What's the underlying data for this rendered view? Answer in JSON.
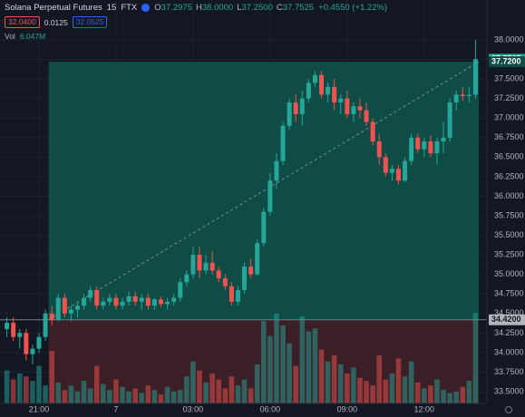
{
  "chart_data": {
    "type": "candlestick",
    "title": "Solana Perpetual Futures",
    "interval": "15",
    "exchange": "FTX",
    "ohlc_legend": [
      {
        "label": "O",
        "value": "37.2975"
      },
      {
        "label": "H",
        "value": "38.0000"
      },
      {
        "label": "L",
        "value": "37.2500"
      },
      {
        "label": "C",
        "value": "37.7525"
      }
    ],
    "change": "+0.4550 (+1.22%)",
    "trade_panel": {
      "sell": "32.0400",
      "spread": "0.0125",
      "buy": "32.0525"
    },
    "categories": [
      null,
      null,
      null,
      null,
      null,
      "21:00",
      null,
      null,
      null,
      null,
      null,
      null,
      null,
      null,
      null,
      null,
      null,
      "7",
      null,
      null,
      null,
      null,
      null,
      null,
      null,
      null,
      null,
      null,
      null,
      "03:00",
      null,
      null,
      null,
      null,
      null,
      null,
      null,
      null,
      null,
      null,
      null,
      "06:00",
      null,
      null,
      null,
      null,
      null,
      null,
      null,
      null,
      null,
      null,
      null,
      "09:00",
      null,
      null,
      null,
      null,
      null,
      null,
      null,
      null,
      null,
      null,
      null,
      "12:00",
      null,
      null,
      null,
      null,
      null,
      null,
      null,
      null
    ],
    "open": [
      34.3,
      34.38,
      34.2,
      34.25,
      33.98,
      34.05,
      34.2,
      34.5,
      34.42,
      34.7,
      34.5,
      34.55,
      34.6,
      34.7,
      34.8,
      34.6,
      34.65,
      34.7,
      34.6,
      34.65,
      34.72,
      34.65,
      34.7,
      34.6,
      34.68,
      34.62,
      34.65,
      34.7,
      34.9,
      35.0,
      35.25,
      35.05,
      35.15,
      35.05,
      34.95,
      34.85,
      34.65,
      34.8,
      35.1,
      35.0,
      35.4,
      35.8,
      36.2,
      36.45,
      36.9,
      37.2,
      37.05,
      37.25,
      37.45,
      37.55,
      37.3,
      37.4,
      37.2,
      37.25,
      37.05,
      37.15,
      37.1,
      36.95,
      36.7,
      36.5,
      36.3,
      36.35,
      36.2,
      36.45,
      36.75,
      36.6,
      36.7,
      36.55,
      36.7,
      36.75,
      37.2,
      37.3,
      37.28,
      37.2975
    ],
    "high": [
      34.45,
      34.45,
      34.3,
      34.3,
      34.1,
      34.25,
      34.55,
      34.6,
      34.75,
      34.75,
      34.6,
      34.65,
      34.75,
      34.85,
      34.85,
      34.7,
      34.75,
      34.75,
      34.7,
      34.78,
      34.78,
      34.75,
      34.75,
      34.7,
      34.72,
      34.7,
      34.75,
      34.95,
      35.05,
      35.35,
      35.35,
      35.25,
      35.3,
      35.1,
      35.0,
      34.9,
      34.85,
      35.15,
      35.2,
      35.45,
      35.85,
      36.3,
      36.55,
      36.95,
      37.25,
      37.3,
      37.35,
      37.5,
      37.6,
      37.6,
      37.45,
      37.5,
      37.3,
      37.35,
      37.2,
      37.25,
      37.2,
      37.0,
      36.8,
      36.55,
      36.4,
      36.4,
      36.5,
      36.8,
      36.8,
      36.75,
      36.78,
      36.75,
      36.95,
      37.25,
      37.35,
      37.4,
      37.4,
      38.0
    ],
    "low": [
      34.2,
      34.15,
      34.05,
      33.9,
      33.85,
      34.0,
      34.15,
      34.35,
      34.4,
      34.45,
      34.4,
      34.45,
      34.55,
      34.65,
      34.55,
      34.55,
      34.6,
      34.55,
      34.55,
      34.6,
      34.6,
      34.55,
      34.55,
      34.55,
      34.58,
      34.55,
      34.6,
      34.65,
      34.85,
      34.95,
      34.95,
      35.0,
      35.0,
      34.9,
      34.8,
      34.6,
      34.6,
      34.75,
      34.95,
      34.98,
      35.35,
      35.75,
      36.1,
      36.4,
      36.85,
      36.95,
      36.9,
      37.2,
      37.4,
      37.25,
      37.2,
      37.1,
      37.05,
      37.0,
      36.95,
      37.0,
      36.9,
      36.65,
      36.4,
      36.25,
      36.2,
      36.15,
      36.18,
      36.4,
      36.55,
      36.5,
      36.5,
      36.4,
      36.55,
      36.7,
      37.1,
      37.22,
      37.2,
      37.25
    ],
    "close": [
      34.38,
      34.2,
      34.25,
      33.98,
      34.05,
      34.2,
      34.5,
      34.42,
      34.7,
      34.5,
      34.55,
      34.6,
      34.7,
      34.8,
      34.6,
      34.65,
      34.7,
      34.6,
      34.65,
      34.72,
      34.65,
      34.7,
      34.6,
      34.68,
      34.62,
      34.65,
      34.7,
      34.9,
      35.0,
      35.25,
      35.05,
      35.15,
      35.05,
      34.95,
      34.85,
      34.65,
      34.8,
      35.1,
      35.0,
      35.4,
      35.8,
      36.2,
      36.45,
      36.9,
      37.2,
      37.05,
      37.25,
      37.45,
      37.55,
      37.3,
      37.4,
      37.2,
      37.25,
      37.05,
      37.15,
      37.1,
      36.95,
      36.7,
      36.5,
      36.3,
      36.35,
      36.2,
      36.45,
      36.75,
      36.6,
      36.7,
      36.55,
      36.7,
      36.75,
      37.2,
      37.3,
      37.28,
      37.2975,
      37.7525
    ],
    "volume": {
      "name": "Vol",
      "label": "6.047M",
      "values": [
        2.2,
        1.6,
        2.0,
        1.8,
        1.5,
        2.5,
        1.2,
        3.5,
        1.4,
        0.9,
        1.2,
        0.8,
        1.5,
        1.0,
        2.5,
        1.3,
        0.9,
        1.6,
        1.1,
        0.8,
        1.0,
        0.7,
        1.2,
        0.9,
        0.6,
        1.1,
        0.8,
        0.9,
        1.8,
        2.8,
        2.2,
        1.4,
        2.0,
        1.6,
        1.0,
        1.8,
        1.2,
        1.6,
        1.0,
        2.6,
        5.5,
        4.5,
        6.0,
        5.2,
        4.0,
        2.5,
        5.8,
        4.8,
        5.0,
        3.6,
        2.8,
        3.2,
        2.6,
        2.0,
        2.4,
        1.7,
        1.5,
        1.2,
        3.2,
        1.6,
        2.0,
        3.0,
        1.8,
        2.8,
        1.4,
        1.0,
        1.2,
        1.6,
        0.9,
        0.7,
        0.8,
        1.1,
        1.5,
        6.047
      ]
    },
    "position": {
      "start_index": 7,
      "entry": {
        "value": 34.42,
        "label": "34.4200"
      },
      "target": {
        "value": 37.72,
        "label": "37.7200"
      }
    },
    "up_color": "#26a69a",
    "down_color": "#ef5350",
    "ylim": [
      33.35,
      38.51
    ],
    "yticks": [
      {
        "value": 33.5,
        "label": "33.5000"
      },
      {
        "value": 33.75,
        "label": "33.7500"
      },
      {
        "value": 34,
        "label": "34.0000"
      },
      {
        "value": 34.25,
        "label": "34.2500"
      },
      {
        "value": 34.5,
        "label": "34.5000"
      },
      {
        "value": 34.75,
        "label": "34.7500"
      },
      {
        "value": 35,
        "label": "35.0000"
      },
      {
        "value": 35.25,
        "label": "35.2500"
      },
      {
        "value": 35.5,
        "label": "35.5000"
      },
      {
        "value": 35.75,
        "label": "35.7500"
      },
      {
        "value": 36,
        "label": "36.0000"
      },
      {
        "value": 36.25,
        "label": "36.2500"
      },
      {
        "value": 36.5,
        "label": "36.5000"
      },
      {
        "value": 36.75,
        "label": "36.7500"
      },
      {
        "value": 37,
        "label": "37.0000"
      },
      {
        "value": 37.25,
        "label": "37.2500"
      },
      {
        "value": 37.5,
        "label": "37.5000"
      },
      {
        "value": 37.75,
        "label": "37.7500"
      },
      {
        "value": 38,
        "label": "38.0000"
      }
    ],
    "grid": true
  }
}
